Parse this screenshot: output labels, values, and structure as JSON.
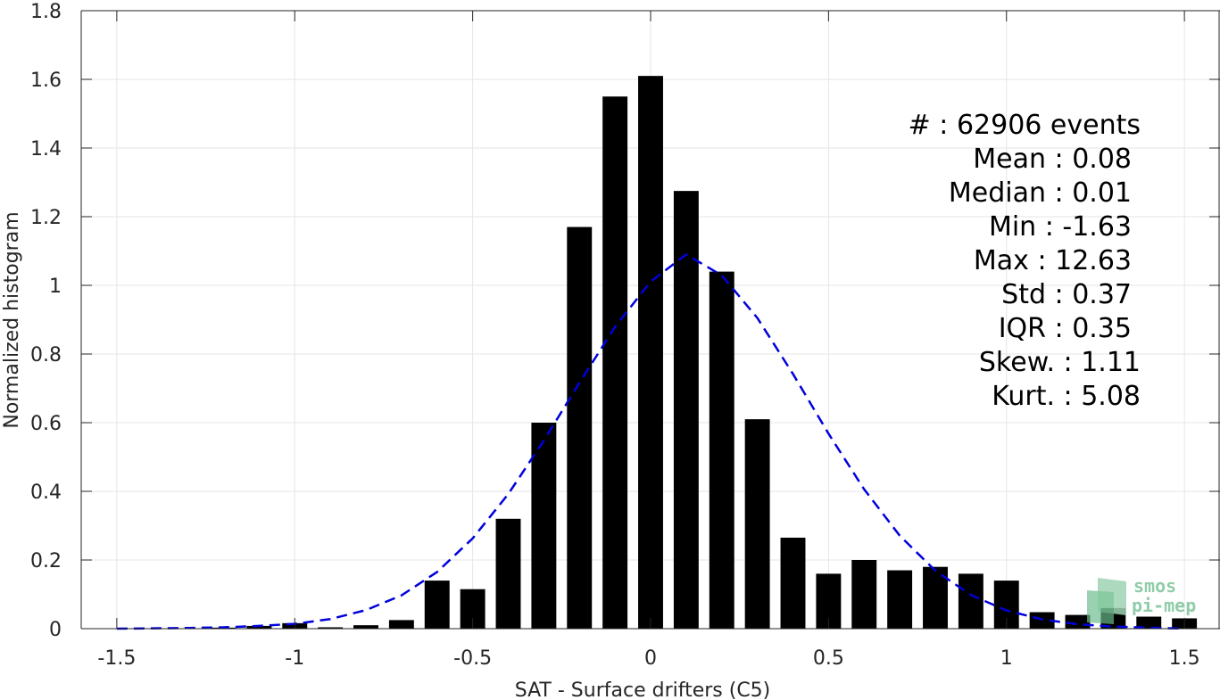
{
  "chart_data": {
    "type": "bar",
    "xlabel": "SAT - Surface drifters (C5)",
    "ylabel": "Normalized histogram",
    "xlim": [
      -1.6,
      1.6
    ],
    "ylim": [
      0,
      1.8
    ],
    "grid": true,
    "xticks": [
      -1.5,
      -1,
      -0.5,
      0,
      0.5,
      1,
      1.5
    ],
    "xtick_labels": [
      "-1.5",
      "-1",
      "-0.5",
      "0",
      "0.5",
      "1",
      "1.5"
    ],
    "yticks": [
      0,
      0.2,
      0.4,
      0.6,
      0.8,
      1,
      1.2,
      1.4,
      1.6,
      1.8
    ],
    "ytick_labels": [
      "0",
      "0.2",
      "0.4",
      "0.6",
      "0.8",
      "1",
      "1.2",
      "1.4",
      "1.6",
      "1.8"
    ],
    "bar_width": 0.07,
    "bar_color": "#000000",
    "series": [
      {
        "type": "bar",
        "x": [
          -1.4,
          -1.3,
          -1.2,
          -1.1,
          -1.0,
          -0.9,
          -0.8,
          -0.7,
          -0.6,
          -0.5,
          -0.4,
          -0.3,
          -0.2,
          -0.1,
          0.0,
          0.1,
          0.2,
          0.3,
          0.4,
          0.5,
          0.6,
          0.7,
          0.8,
          0.9,
          1.0,
          1.1,
          1.2,
          1.3,
          1.4,
          1.5
        ],
        "values": [
          0.0,
          0.0,
          0.003,
          0.008,
          0.016,
          0.004,
          0.01,
          0.025,
          0.14,
          0.115,
          0.32,
          0.6,
          1.17,
          1.55,
          1.61,
          1.275,
          1.04,
          0.61,
          0.265,
          0.16,
          0.2,
          0.17,
          0.18,
          0.16,
          0.14,
          0.048,
          0.04,
          0.06,
          0.035,
          0.03
        ]
      },
      {
        "type": "line",
        "style": "dashed",
        "color": "#0000dd",
        "x": [
          -1.5,
          -1.4,
          -1.3,
          -1.2,
          -1.1,
          -1.0,
          -0.9,
          -0.8,
          -0.7,
          -0.6,
          -0.5,
          -0.4,
          -0.3,
          -0.2,
          -0.1,
          0.0,
          0.1,
          0.2,
          0.3,
          0.4,
          0.5,
          0.6,
          0.7,
          0.8,
          0.9,
          1.0,
          1.1,
          1.2,
          1.3,
          1.4,
          1.5
        ],
        "values": [
          0.0,
          0.001,
          0.002,
          0.004,
          0.008,
          0.014,
          0.028,
          0.054,
          0.097,
          0.165,
          0.263,
          0.392,
          0.548,
          0.716,
          0.879,
          1.011,
          1.09,
          1.029,
          0.905,
          0.742,
          0.568,
          0.406,
          0.271,
          0.169,
          0.098,
          0.053,
          0.027,
          0.013,
          0.006,
          0.003,
          0.0
        ]
      }
    ],
    "stats": [
      {
        "label": "#  : 62906 events"
      },
      {
        "label": "Mean : 0.08"
      },
      {
        "label": "Median : 0.01"
      },
      {
        "label": "Min : -1.63"
      },
      {
        "label": "Max : 12.63"
      },
      {
        "label": "Std : 0.37"
      },
      {
        "label": "IQR : 0.35"
      },
      {
        "label": "Skew. : 1.11"
      },
      {
        "label": "Kurt. : 5.08"
      }
    ]
  },
  "logo": {
    "line1": "smos",
    "line2": "pi-mep",
    "color": "#7cc49a"
  }
}
